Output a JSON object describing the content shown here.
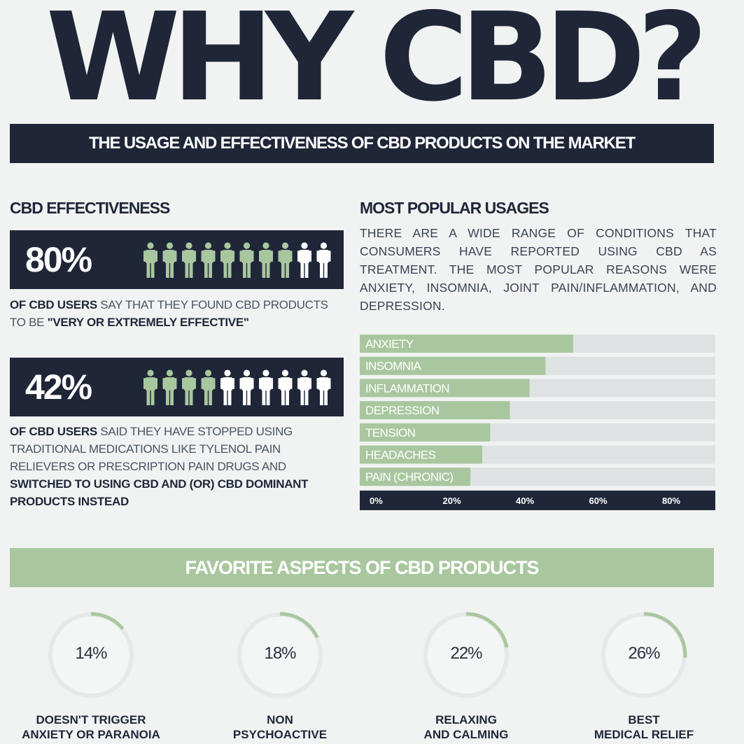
{
  "header": {
    "title": "WHY CBD?",
    "subtitle": "THE USAGE AND EFFECTIVENESS OF CBD PRODUCTS ON THE MARKET"
  },
  "effectiveness": {
    "heading": "CBD EFFECTIVENESS",
    "stats": [
      {
        "pct": "80%",
        "filled": 8,
        "total": 10,
        "text_bold1": "OF CBD USERS",
        "text_plain": " SAY THAT THEY FOUND CBD PRODUCTS TO BE ",
        "text_bold2": "\"VERY OR EXTREMELY EFFECTIVE\""
      },
      {
        "pct": "42%",
        "filled": 4,
        "total": 10,
        "text_bold1": "OF CBD USERS",
        "text_plain": " SAID THEY HAVE STOPPED USING TRADITIONAL MEDICATIONS LIKE TYLENOL PAIN RELIEVERS OR PRESCRIPTION PAIN DRUGS AND ",
        "text_bold2": "SWITCHED TO USING CBD AND (OR) CBD DOMINANT PRODUCTS INSTEAD"
      }
    ]
  },
  "usages": {
    "heading": "MOST POPULAR USAGES",
    "paragraph": "THERE ARE A WIDE RANGE OF CONDITIONS THAT CONSUMERS HAVE REPORTED USING CBD AS TREATMENT. THE MOST POPULAR REASONS WERE ANXIETY, INSOMNIA, JOINT PAIN/INFLAMMATION, AND DEPRESSION."
  },
  "favorites": {
    "heading": "FAVORITE ASPECTS OF CBD PRODUCTS",
    "items": [
      {
        "pct": "14%",
        "value": 14,
        "label1": "DOESN'T TRIGGER",
        "label2": "ANXIETY OR PARANOIA"
      },
      {
        "pct": "18%",
        "value": 18,
        "label1": "NON",
        "label2": "PSYCHOACTIVE"
      },
      {
        "pct": "22%",
        "value": 22,
        "label1": "RELAXING",
        "label2": "AND CALMING"
      },
      {
        "pct": "26%",
        "value": 26,
        "label1": "BEST",
        "label2": "MEDICAL RELIEF"
      }
    ]
  },
  "colors": {
    "navy": "#1f2638",
    "green": "#a9c79f",
    "track": "#dfe2e2",
    "person_empty": "#ffffff"
  },
  "chart_data": {
    "type": "bar",
    "orientation": "horizontal",
    "categories": [
      "ANXIETY",
      "INSOMNIA",
      "INFLAMMATION",
      "DEPRESSION",
      "TENSION",
      "HEADACHES",
      "PAIN (CHRONIC)"
    ],
    "values": [
      54,
      47,
      43,
      38,
      33,
      31,
      28
    ],
    "xlim": [
      0,
      90
    ],
    "x_ticks": [
      "0%",
      "20%",
      "40%",
      "60%",
      "80%"
    ],
    "x_tick_values": [
      0,
      20,
      40,
      60,
      80
    ]
  }
}
